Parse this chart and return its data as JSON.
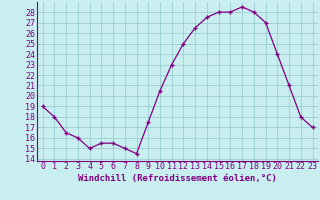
{
  "x": [
    0,
    1,
    2,
    3,
    4,
    5,
    6,
    7,
    8,
    9,
    10,
    11,
    12,
    13,
    14,
    15,
    16,
    17,
    18,
    19,
    20,
    21,
    22,
    23
  ],
  "y": [
    19,
    18,
    16.5,
    16,
    15,
    15.5,
    15.5,
    15,
    14.5,
    17.5,
    20.5,
    23,
    25,
    26.5,
    27.5,
    28,
    28,
    28.5,
    28,
    27,
    24,
    21,
    18,
    17
  ],
  "line_color": "#800080",
  "marker": "+",
  "bg_color": "#c8eef0",
  "grid_color": "#90c8d0",
  "xlabel": "Windchill (Refroidissement éolien,°C)",
  "label_color": "#800080",
  "ylim": [
    13.8,
    29.0
  ],
  "xlim": [
    -0.5,
    23.5
  ],
  "xlabel_fontsize": 6.5,
  "tick_fontsize": 6.0,
  "ytick_min": 14,
  "ytick_max": 28
}
